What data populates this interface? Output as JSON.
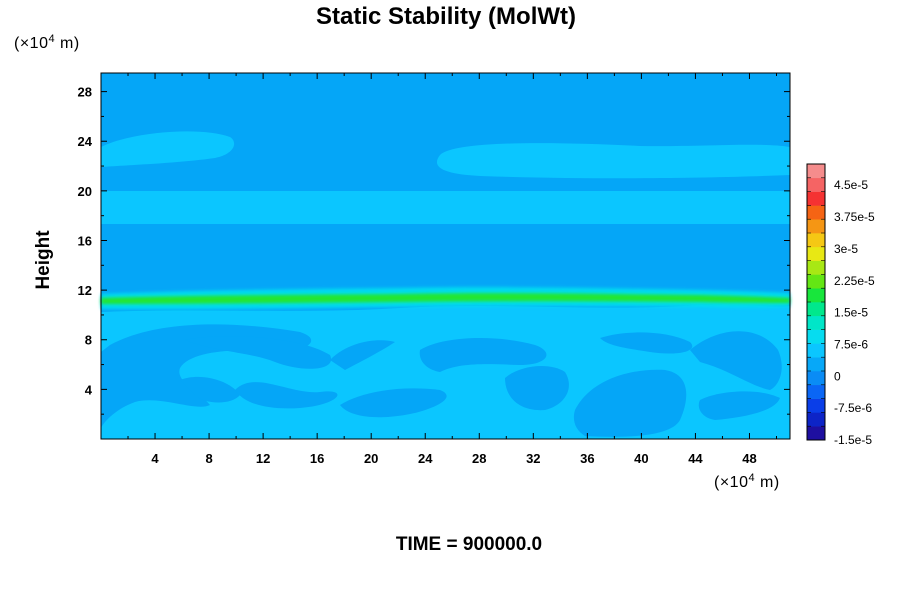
{
  "chart_data": {
    "type": "heatmap",
    "title": "Static Stability (MolWt)",
    "ylabel": "Height",
    "xlabel": "",
    "x_unit": {
      "prefix": "(×10",
      "exp": "4",
      "suffix": " m)"
    },
    "y_unit": {
      "prefix": "(×10",
      "exp": "4",
      "suffix": " m)"
    },
    "xlim": [
      0,
      51
    ],
    "ylim": [
      0,
      29.5
    ],
    "x_ticks": [
      4,
      8,
      12,
      16,
      20,
      24,
      28,
      32,
      36,
      40,
      44,
      48
    ],
    "y_ticks": [
      4,
      8,
      12,
      16,
      20,
      24,
      28
    ],
    "grid": false,
    "colorbar": {
      "position": "right",
      "range": [
        -1.5e-05,
        5e-05
      ],
      "tick_labels": [
        "4.5e-5",
        "3.75e-5",
        "3e-5",
        "2.25e-5",
        "1.5e-5",
        "7.5e-6",
        "0",
        "-7.5e-6",
        "-1.5e-5"
      ],
      "tick_values": [
        4.5e-05,
        3.75e-05,
        3e-05,
        2.25e-05,
        1.5e-05,
        7.5e-06,
        0,
        -7.5e-06,
        -1.5e-05
      ],
      "colors": [
        "#1e0fa0",
        "#0d24c7",
        "#0a3ee8",
        "#0a66f5",
        "#0a8cf5",
        "#07a8f8",
        "#0bc6ff",
        "#06dcf0",
        "#00e6c8",
        "#00e88c",
        "#18e63c",
        "#64e614",
        "#a8e814",
        "#e8e814",
        "#f5c814",
        "#f59614",
        "#f56414",
        "#f53232",
        "#f56464",
        "#f58c8c"
      ]
    },
    "field": {
      "background_value": 0,
      "background_color": "#05a6f7",
      "regions": [
        {
          "name": "upper-stable-layer",
          "value": 3e-06,
          "color": "#0bc6ff",
          "y_range": [
            17.5,
            20.8
          ]
        },
        {
          "name": "upper-left-patch",
          "value": 3e-06,
          "color": "#0bc6ff",
          "x_range": [
            0,
            9.7
          ],
          "y_range": [
            22.3,
            24.6
          ]
        },
        {
          "name": "upper-right-patch",
          "value": 3e-06,
          "color": "#0bc6ff",
          "x_range": [
            24.4,
            51
          ],
          "y_range": [
            21.6,
            24.3
          ]
        },
        {
          "name": "tropopause-band",
          "value": 1.5e-05,
          "color": "#22e632",
          "y_range": [
            10.9,
            11.9
          ]
        },
        {
          "name": "lower-troposphere",
          "value": 3e-06,
          "color": "#0bc6ff",
          "y_range": [
            0,
            11
          ]
        }
      ]
    },
    "footer": "TIME = 900000.0"
  }
}
